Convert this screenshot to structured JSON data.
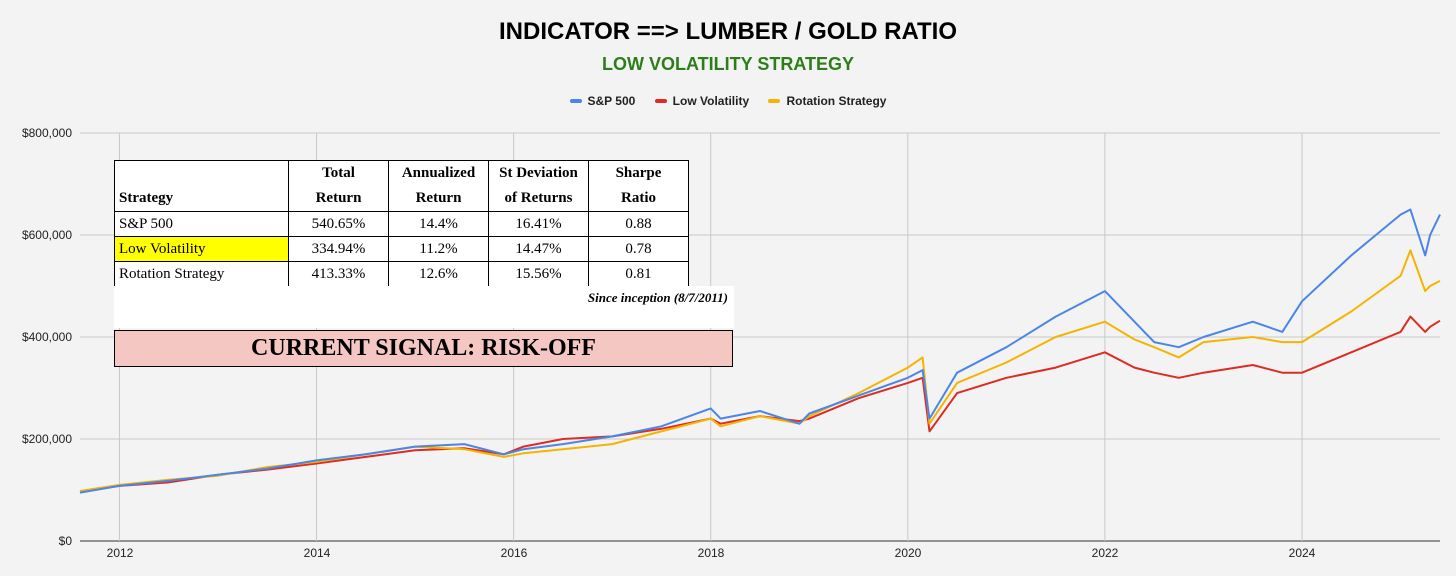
{
  "title": "INDICATOR ==> LUMBER / GOLD RATIO",
  "subtitle": "LOW VOLATILITY STRATEGY",
  "colors": {
    "sp500": "#4a86e8",
    "lowvol": "#dd2c22",
    "rotation": "#f5b400",
    "grid": "#c8c8c8",
    "subtitle": "#2e7d1b",
    "highlight": "#ffff00",
    "signal_bg": "#f4c7c3"
  },
  "table": {
    "headers": [
      "Strategy",
      "Total\nReturn",
      "Annualized\nReturn",
      "St Deviation\nof Returns",
      "Sharpe\nRatio"
    ],
    "rows": [
      [
        "S&P 500",
        "540.65%",
        "14.4%",
        "16.41%",
        "0.88"
      ],
      [
        "Low Volatility",
        "334.94%",
        "11.2%",
        "14.47%",
        "0.78"
      ],
      [
        "Rotation Strategy",
        "413.33%",
        "12.6%",
        "15.56%",
        "0.81"
      ]
    ],
    "highlight_row": 1
  },
  "note": "Since inception (8/7/2011)",
  "signal": "CURRENT SIGNAL: RISK-OFF",
  "chart_data": {
    "type": "line",
    "title": "INDICATOR ==> LUMBER / GOLD RATIO",
    "subtitle": "LOW VOLATILITY STRATEGY",
    "xlabel": "",
    "ylabel": "",
    "xlim": [
      2011.6,
      2025.4
    ],
    "ylim": [
      0,
      800000
    ],
    "yticks": [
      0,
      200000,
      400000,
      600000,
      800000
    ],
    "ytick_labels": [
      "$0",
      "$200,000",
      "$400,000",
      "$600,000",
      "$800,000"
    ],
    "xticks": [
      2012,
      2014,
      2016,
      2018,
      2020,
      2022,
      2024
    ],
    "xtick_labels": [
      "2012",
      "2014",
      "2016",
      "2018",
      "2020",
      "2022",
      "2024"
    ],
    "legend_position": "top-center",
    "series": [
      {
        "name": "S&P 500",
        "color": "#4a86e8",
        "x": [
          2011.6,
          2012.0,
          2012.5,
          2013.0,
          2013.5,
          2014.0,
          2014.5,
          2015.0,
          2015.5,
          2015.9,
          2016.1,
          2016.5,
          2017.0,
          2017.5,
          2018.0,
          2018.1,
          2018.5,
          2018.9,
          2019.0,
          2019.5,
          2020.0,
          2020.15,
          2020.22,
          2020.5,
          2021.0,
          2021.5,
          2022.0,
          2022.3,
          2022.5,
          2022.75,
          2023.0,
          2023.5,
          2023.8,
          2024.0,
          2024.5,
          2025.0,
          2025.1,
          2025.25,
          2025.3,
          2025.4
        ],
        "y": [
          95000,
          108000,
          118000,
          130000,
          142000,
          158000,
          170000,
          185000,
          190000,
          170000,
          180000,
          190000,
          205000,
          225000,
          260000,
          240000,
          255000,
          230000,
          250000,
          285000,
          320000,
          335000,
          240000,
          330000,
          380000,
          440000,
          490000,
          430000,
          390000,
          380000,
          400000,
          430000,
          410000,
          470000,
          560000,
          640000,
          650000,
          560000,
          600000,
          640000
        ]
      },
      {
        "name": "Low Volatility",
        "color": "#dd2c22",
        "x": [
          2011.6,
          2012.0,
          2012.5,
          2013.0,
          2013.5,
          2014.0,
          2014.5,
          2015.0,
          2015.5,
          2015.9,
          2016.1,
          2016.5,
          2017.0,
          2017.5,
          2018.0,
          2018.1,
          2018.5,
          2018.9,
          2019.0,
          2019.5,
          2020.0,
          2020.15,
          2020.22,
          2020.5,
          2021.0,
          2021.5,
          2022.0,
          2022.3,
          2022.5,
          2022.75,
          2023.0,
          2023.5,
          2023.8,
          2024.0,
          2024.5,
          2025.0,
          2025.1,
          2025.25,
          2025.3,
          2025.4
        ],
        "y": [
          97000,
          108000,
          115000,
          130000,
          140000,
          152000,
          165000,
          178000,
          182000,
          170000,
          185000,
          200000,
          205000,
          220000,
          240000,
          230000,
          245000,
          235000,
          240000,
          280000,
          310000,
          320000,
          215000,
          290000,
          320000,
          340000,
          370000,
          340000,
          330000,
          320000,
          330000,
          345000,
          330000,
          330000,
          370000,
          410000,
          440000,
          410000,
          420000,
          432000
        ]
      },
      {
        "name": "Rotation Strategy",
        "color": "#f5b400",
        "x": [
          2011.6,
          2012.0,
          2012.5,
          2013.0,
          2013.5,
          2014.0,
          2014.5,
          2015.0,
          2015.5,
          2015.9,
          2016.1,
          2016.5,
          2017.0,
          2017.5,
          2018.0,
          2018.1,
          2018.5,
          2018.9,
          2019.0,
          2019.5,
          2020.0,
          2020.15,
          2020.22,
          2020.5,
          2021.0,
          2021.5,
          2022.0,
          2022.3,
          2022.5,
          2022.75,
          2023.0,
          2023.5,
          2023.8,
          2024.0,
          2024.5,
          2025.0,
          2025.1,
          2025.25,
          2025.3,
          2025.4
        ],
        "y": [
          98000,
          110000,
          120000,
          128000,
          145000,
          155000,
          170000,
          185000,
          180000,
          165000,
          172000,
          180000,
          190000,
          215000,
          240000,
          225000,
          245000,
          230000,
          245000,
          290000,
          340000,
          360000,
          230000,
          310000,
          350000,
          400000,
          430000,
          395000,
          380000,
          360000,
          390000,
          400000,
          390000,
          390000,
          450000,
          520000,
          570000,
          490000,
          500000,
          510000
        ]
      }
    ]
  }
}
